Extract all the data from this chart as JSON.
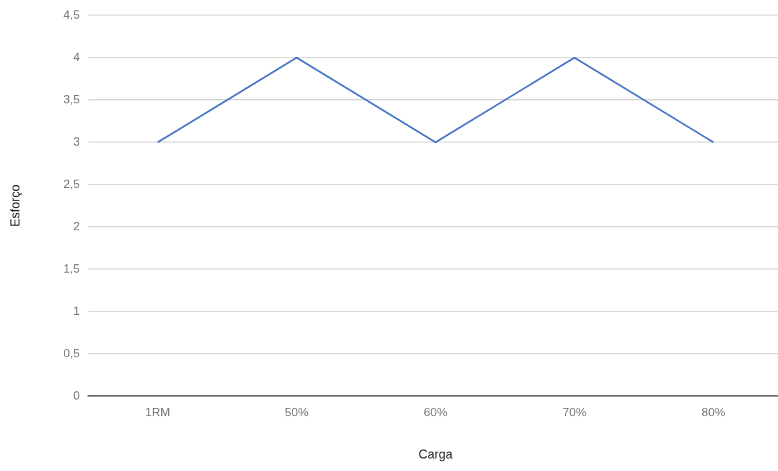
{
  "chart_data": {
    "type": "line",
    "xlabel": "Carga",
    "ylabel": "Esforço",
    "categories": [
      "1RM",
      "50%",
      "60%",
      "70%",
      "80%"
    ],
    "series": [
      {
        "color": "#4a78c6",
        "values": [
          3,
          4,
          3,
          4,
          3
        ]
      }
    ],
    "ylim": [
      0,
      4.5
    ],
    "yticks": [
      0,
      {
        "value": 0.5,
        "label": "0,5"
      },
      1,
      {
        "value": 1.5,
        "label": "1,5"
      },
      2,
      {
        "value": 2.5,
        "label": "2,5"
      },
      3,
      {
        "value": 3.5,
        "label": "3,5"
      },
      4,
      {
        "value": 4.5,
        "label": "4,5"
      }
    ],
    "grid": "y",
    "legend": false,
    "marker": "none",
    "line_style": "solid"
  }
}
